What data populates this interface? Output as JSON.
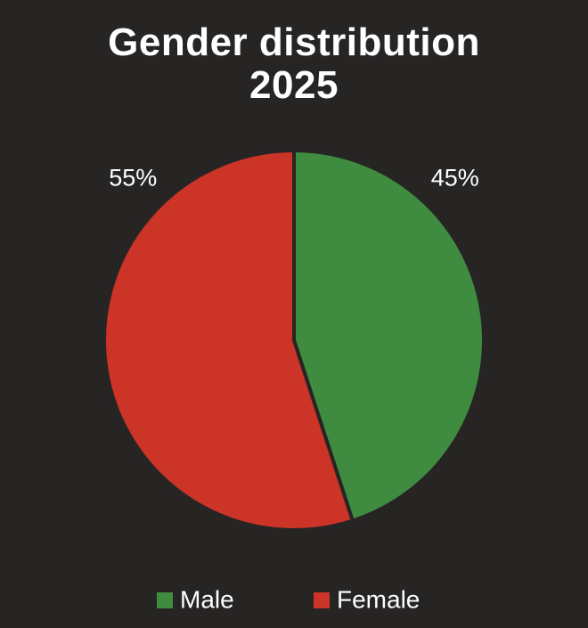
{
  "chart_data": {
    "type": "pie",
    "title": "Gender distribution 2025",
    "categories": [
      "Male",
      "Female"
    ],
    "values": [
      45,
      55
    ],
    "value_labels": [
      "45%",
      "55%"
    ],
    "colors": [
      "#3f8c40",
      "#cc3428"
    ],
    "legend": "bottom"
  }
}
